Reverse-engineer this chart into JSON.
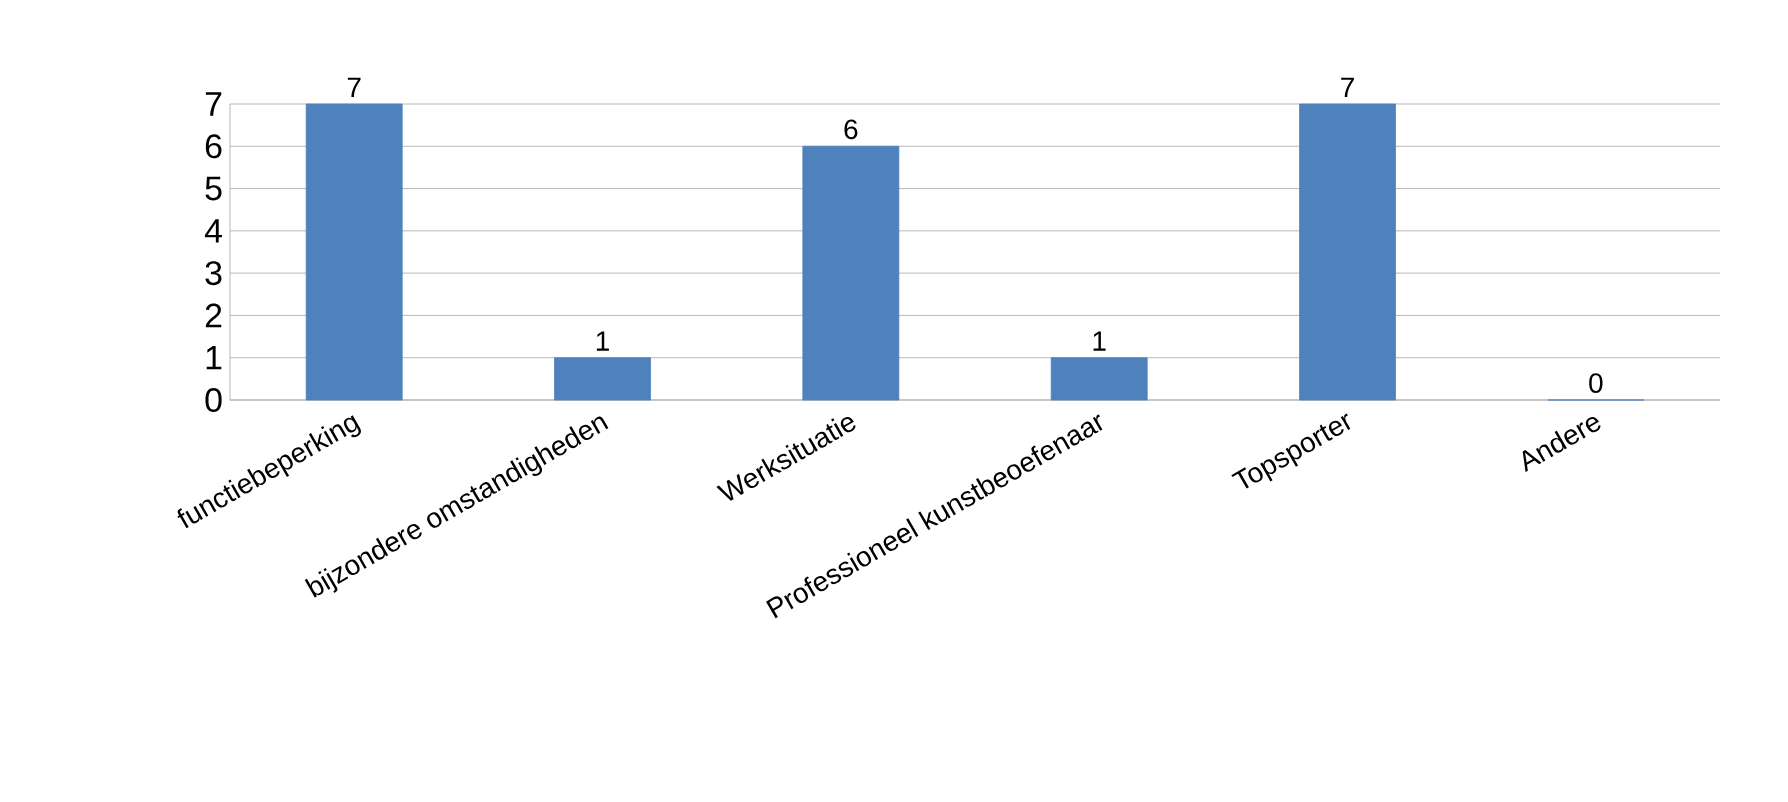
{
  "chart_data": {
    "type": "bar",
    "categories": [
      "functiebeperking",
      "bijzondere omstandigheden",
      "Werksituatie",
      "Professioneel kunstbeoefenaar",
      "Topsporter",
      "Andere"
    ],
    "values": [
      7,
      1,
      6,
      1,
      7,
      0
    ],
    "color": "#4f81bd",
    "ylim": [
      0,
      7
    ],
    "yticks": [
      0,
      1,
      2,
      3,
      4,
      5,
      6,
      7
    ],
    "grid": "y",
    "data_labels": true
  }
}
